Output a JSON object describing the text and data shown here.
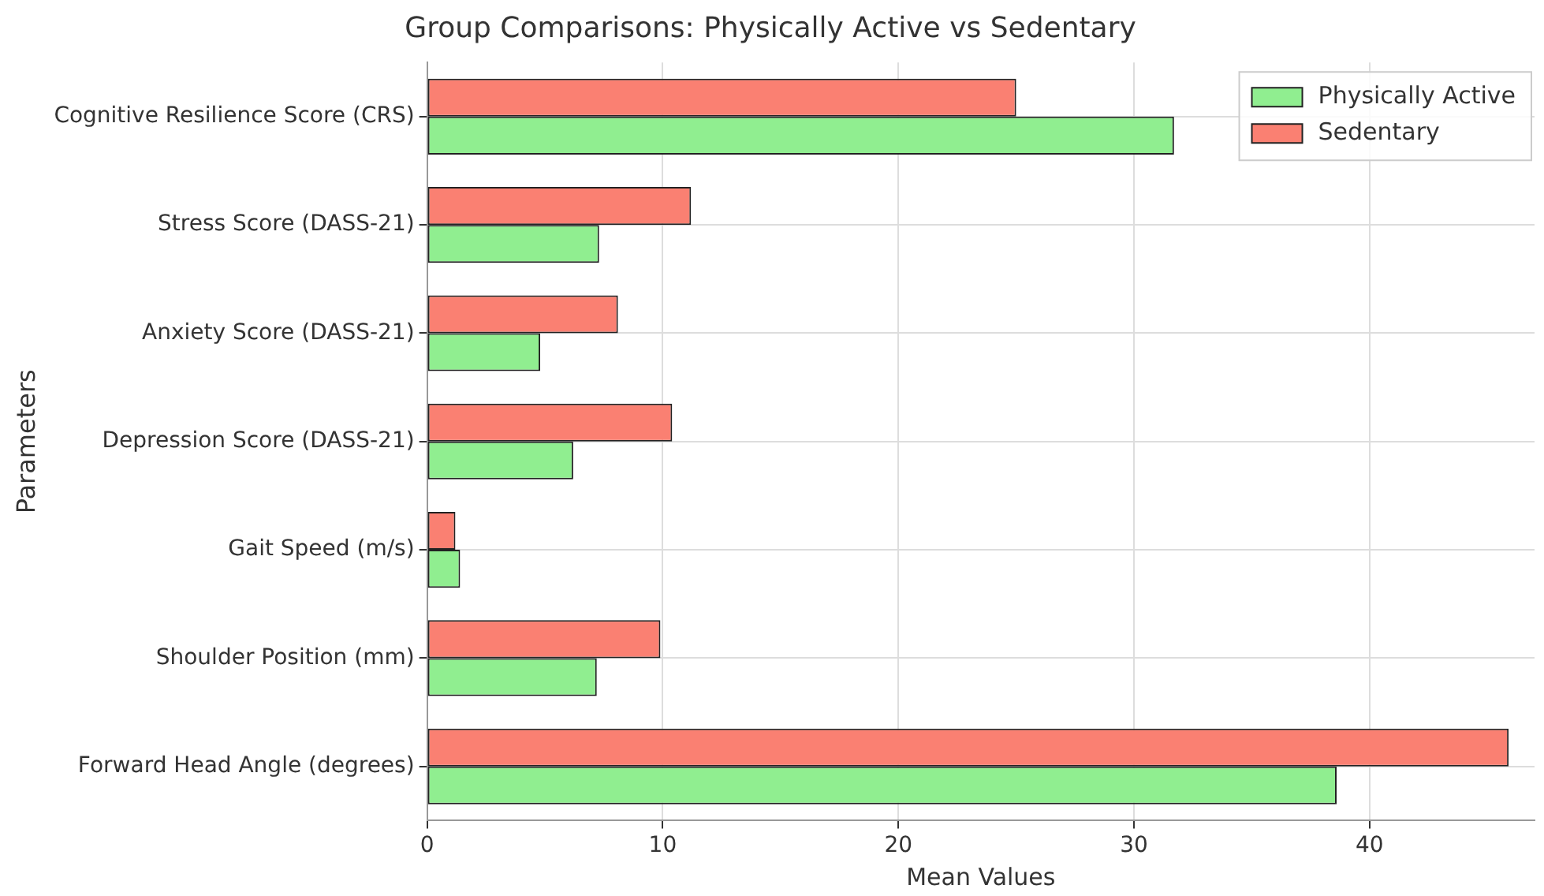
{
  "chart_data": {
    "type": "bar",
    "orientation": "horizontal",
    "title": "Group Comparisons: Physically Active vs Sedentary",
    "xlabel": "Mean Values",
    "ylabel": "Parameters",
    "categories": [
      "Cognitive Resilience Score (CRS)",
      "Stress Score (DASS-21)",
      "Anxiety Score (DASS-21)",
      "Depression Score (DASS-21)",
      "Gait Speed (m/s)",
      "Shoulder Position (mm)",
      "Forward Head Angle (degrees)"
    ],
    "series": [
      {
        "name": "Physically Active",
        "color": "#90ee90",
        "values": [
          31.7,
          7.3,
          4.8,
          6.2,
          1.4,
          7.2,
          38.6
        ]
      },
      {
        "name": "Sedentary",
        "color": "#fa8072",
        "values": [
          25.0,
          11.2,
          8.1,
          10.4,
          1.2,
          9.9,
          45.9
        ]
      }
    ],
    "xlim": [
      0,
      47
    ],
    "xticks": [
      0,
      10,
      20,
      30,
      40
    ],
    "grid": true,
    "legend": "top right"
  }
}
